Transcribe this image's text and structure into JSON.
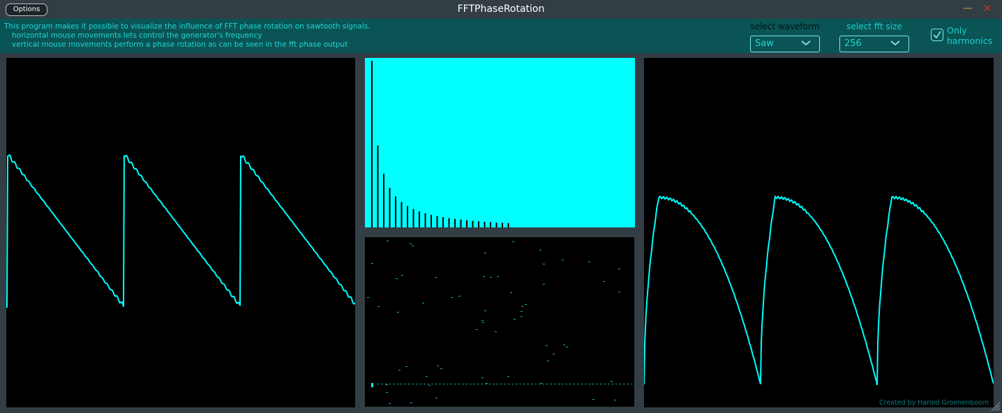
{
  "window": {
    "title": "FFTPhaseRotation",
    "options_label": "Options",
    "minimize_glyph": "—",
    "close_glyph": "✕"
  },
  "info": {
    "lines": [
      "This program makes it possible to visualize the influence of FFT phase rotation on sawtooth signals.",
      "horizontal mouse movements lets control the generator's frequency",
      "vertical mouse movements perform a phase rotation as can be seen in the fft phase output"
    ]
  },
  "controls": {
    "waveform_label": "select waveform",
    "waveform_value": "Saw",
    "fft_size_label": "select fft size",
    "fft_size_value": "256",
    "only_harmonics_label": "Only harmonics",
    "only_harmonics_checked": true
  },
  "footer": {
    "credit": "Created by Harold Groenenboom"
  },
  "colors": {
    "accent": "#00ffff",
    "info_bg": "#0a5455",
    "frame_bg": "#323e44"
  }
}
